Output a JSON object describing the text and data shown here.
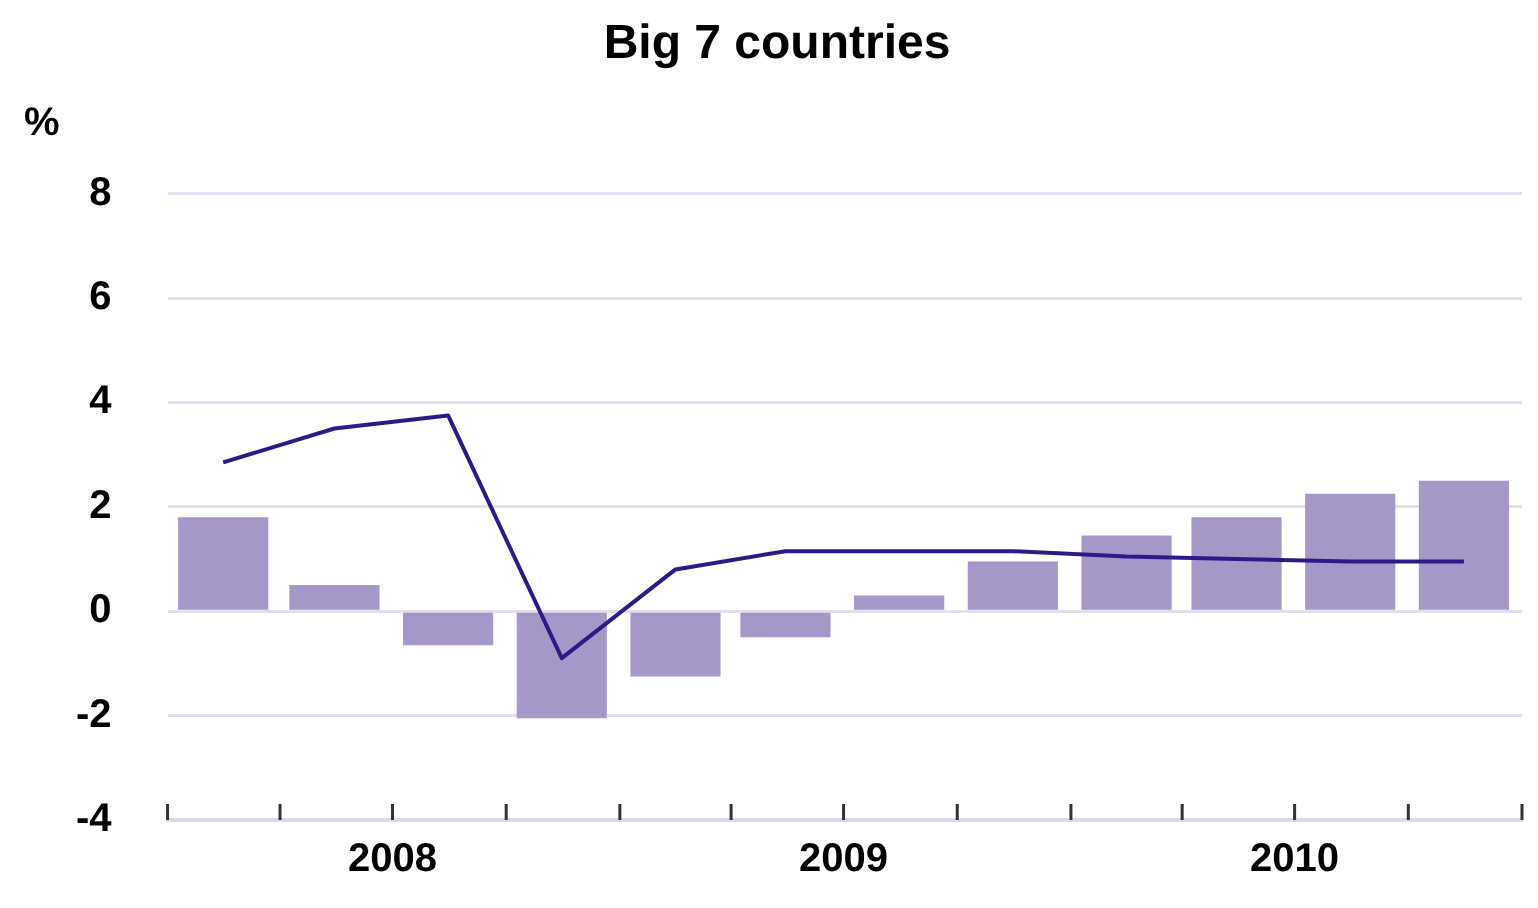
{
  "chart_data": {
    "type": "bar",
    "title": "Big 7 countries",
    "ylabel": "%",
    "x": [
      "2008-02-15",
      "2008-05-15",
      "2008-08-15",
      "2008-11-15",
      "2009-02-15",
      "2009-05-15",
      "2009-08-15",
      "2009-11-15",
      "2010-02-15",
      "2010-05-15",
      "2010-08-15",
      "2010-11-15"
    ],
    "series": [
      {
        "color": "#a597c8",
        "values": [
          1.8,
          0.5,
          -0.65,
          -2.05,
          -1.25,
          -0.5,
          0.3,
          0.95,
          1.45,
          1.8,
          2.25,
          2.5
        ]
      },
      {
        "type": "line",
        "color": "#2e1a87",
        "values": [
          2.85,
          3.5,
          3.75,
          -0.9,
          0.8,
          1.15,
          1.15,
          1.15,
          1.05,
          1.0,
          0.95,
          0.95
        ]
      }
    ],
    "xlim": [
      "2008-01",
      "2011-01"
    ],
    "xticks": [
      {
        "value": "2008-01",
        "label": null
      },
      {
        "value": "2008-04",
        "label": null
      },
      {
        "value": "2008-07",
        "label": "2008"
      },
      {
        "value": "2008-10",
        "label": null
      },
      {
        "value": "2009-01",
        "label": null
      },
      {
        "value": "2009-04",
        "label": null
      },
      {
        "value": "2009-07",
        "label": "2009"
      },
      {
        "value": "2009-10",
        "label": null
      },
      {
        "value": "2010-01",
        "label": null
      },
      {
        "value": "2010-04",
        "label": null
      },
      {
        "value": "2010-07",
        "label": "2010"
      },
      {
        "value": "2010-10",
        "label": null
      },
      {
        "value": "2011-01",
        "label": null
      }
    ],
    "ylim": [
      -4,
      8
    ],
    "yticks": [
      -4,
      -2,
      0,
      2,
      4,
      6,
      8
    ],
    "grid": "y",
    "legend": false,
    "marker": "none",
    "line_style": "solid"
  }
}
